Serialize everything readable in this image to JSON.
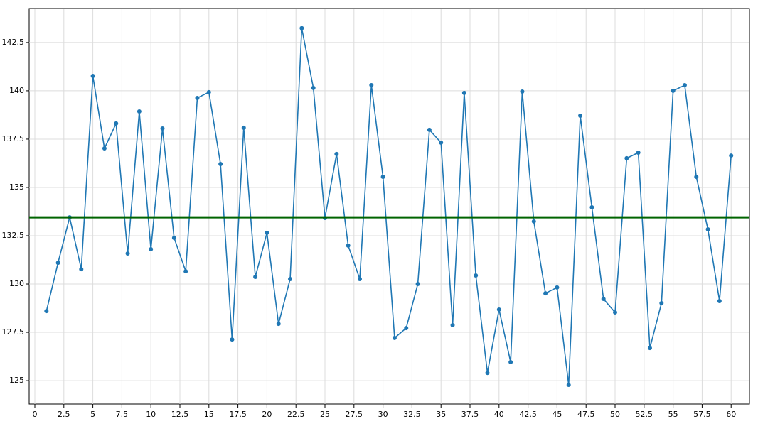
{
  "chart_data": {
    "type": "line",
    "x": [
      1,
      2,
      3,
      4,
      5,
      6,
      7,
      8,
      9,
      10,
      11,
      12,
      13,
      14,
      15,
      16,
      17,
      18,
      19,
      20,
      21,
      22,
      23,
      24,
      25,
      26,
      27,
      28,
      29,
      30,
      31,
      32,
      33,
      34,
      35,
      36,
      37,
      38,
      39,
      40,
      41,
      42,
      43,
      44,
      45,
      46,
      47,
      48,
      49,
      50,
      51,
      52,
      53,
      54,
      55,
      56,
      57,
      58,
      59,
      60
    ],
    "series": [
      {
        "color": "#1f77b4",
        "values": [
          128.6,
          131.1,
          133.45,
          130.77,
          140.77,
          137.02,
          138.31,
          131.58,
          138.93,
          131.8,
          138.05,
          132.39,
          130.66,
          139.63,
          139.93,
          136.21,
          127.13,
          138.09,
          130.37,
          132.65,
          127.94,
          130.26,
          143.24,
          140.15,
          133.42,
          136.73,
          131.99,
          130.26,
          140.29,
          135.55,
          127.21,
          127.72,
          130.0,
          137.98,
          137.32,
          127.87,
          139.89,
          130.44,
          125.4,
          128.68,
          125.96,
          139.96,
          133.24,
          129.52,
          129.82,
          124.78,
          138.71,
          133.97,
          129.23,
          128.53,
          136.51,
          136.8,
          126.69,
          129.01,
          140.0,
          140.29,
          135.55,
          132.83,
          129.12,
          136.65
        ]
      }
    ],
    "hline": {
      "value": 133.45,
      "color": "#006400"
    },
    "xlim": [
      -0.49,
      61.58
    ],
    "ylim": [
      123.79,
      144.26
    ],
    "xticks": [
      0,
      2.5,
      5,
      7.5,
      10,
      12.5,
      15,
      17.5,
      20,
      22.5,
      25,
      27.5,
      30,
      32.5,
      35,
      37.5,
      40,
      42.5,
      45,
      47.5,
      50,
      52.5,
      55,
      57.5,
      60
    ],
    "yticks": [
      125,
      127.5,
      130,
      132.5,
      135,
      137.5,
      140,
      142.5
    ],
    "grid": true
  }
}
